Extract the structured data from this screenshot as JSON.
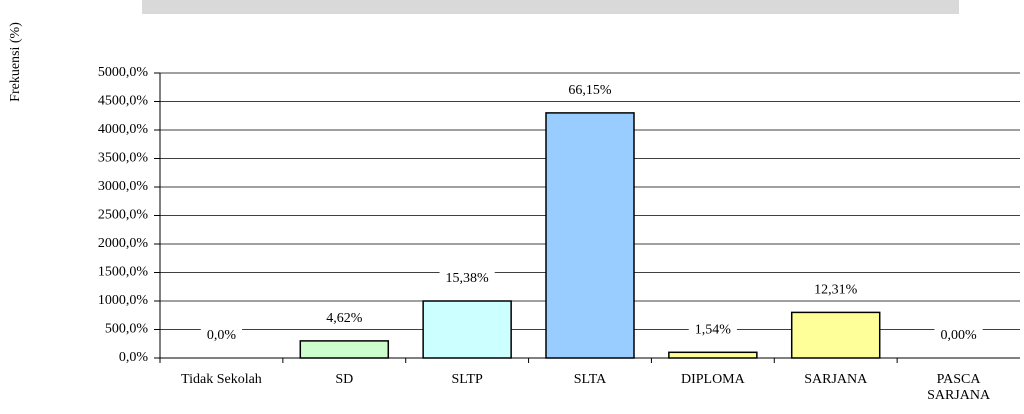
{
  "chart_data": {
    "type": "bar",
    "y_label": "Frekuensi (%)",
    "categories": [
      "Tidak Sekolah",
      "SD",
      "SLTP",
      "SLTA",
      "DIPLOMA",
      "SARJANA",
      "PASCA SARJANA"
    ],
    "values": [
      0,
      300,
      1000,
      4300,
      100,
      800,
      0
    ],
    "bar_labels": [
      "0,0%",
      "4,62%",
      "15,38%",
      "66,15%",
      "1,54%",
      "12,31%",
      "0,00%"
    ],
    "colors": [
      "#ffffff",
      "#ccffcc",
      "#ccffff",
      "#99ccff",
      "#ffff99",
      "#ffff99",
      "#ffffff"
    ],
    "ylim": [
      0,
      5000
    ],
    "yticks": [
      {
        "value": 0,
        "label": "0,0%"
      },
      {
        "value": 500,
        "label": "500,0%"
      },
      {
        "value": 1000,
        "label": "1000,0%"
      },
      {
        "value": 1500,
        "label": "1500,0%"
      },
      {
        "value": 2000,
        "label": "2000,0%"
      },
      {
        "value": 2500,
        "label": "2500,0%"
      },
      {
        "value": 3000,
        "label": "3000,0%"
      },
      {
        "value": 3500,
        "label": "3500,0%"
      },
      {
        "value": 4000,
        "label": "4000,0%"
      },
      {
        "value": 4500,
        "label": "4500,0%"
      },
      {
        "value": 5000,
        "label": "5000,0%"
      }
    ],
    "grid": true
  }
}
